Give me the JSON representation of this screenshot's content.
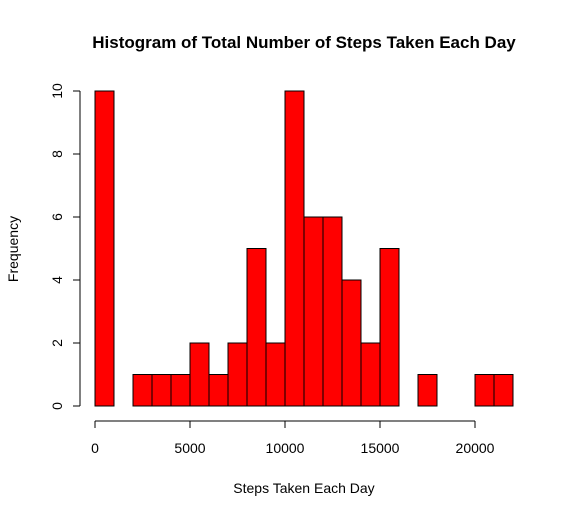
{
  "chart_data": {
    "type": "bar",
    "title": "Histogram of Total Number of Steps Taken Each Day",
    "xlabel": "Steps Taken Each Day",
    "ylabel": "Frequency",
    "bin_width": 1000,
    "bins": [
      {
        "start": 0,
        "end": 1000,
        "count": 10
      },
      {
        "start": 1000,
        "end": 2000,
        "count": 0
      },
      {
        "start": 2000,
        "end": 3000,
        "count": 1
      },
      {
        "start": 3000,
        "end": 4000,
        "count": 1
      },
      {
        "start": 4000,
        "end": 5000,
        "count": 1
      },
      {
        "start": 5000,
        "end": 6000,
        "count": 2
      },
      {
        "start": 6000,
        "end": 7000,
        "count": 1
      },
      {
        "start": 7000,
        "end": 8000,
        "count": 2
      },
      {
        "start": 8000,
        "end": 9000,
        "count": 5
      },
      {
        "start": 9000,
        "end": 10000,
        "count": 2
      },
      {
        "start": 10000,
        "end": 11000,
        "count": 10
      },
      {
        "start": 11000,
        "end": 12000,
        "count": 6
      },
      {
        "start": 12000,
        "end": 13000,
        "count": 6
      },
      {
        "start": 13000,
        "end": 14000,
        "count": 4
      },
      {
        "start": 14000,
        "end": 15000,
        "count": 2
      },
      {
        "start": 15000,
        "end": 16000,
        "count": 5
      },
      {
        "start": 16000,
        "end": 17000,
        "count": 0
      },
      {
        "start": 17000,
        "end": 18000,
        "count": 1
      },
      {
        "start": 18000,
        "end": 19000,
        "count": 0
      },
      {
        "start": 19000,
        "end": 20000,
        "count": 0
      },
      {
        "start": 20000,
        "end": 21000,
        "count": 1
      },
      {
        "start": 21000,
        "end": 22000,
        "count": 1
      }
    ],
    "x_ticks": [
      "0",
      "5000",
      "10000",
      "15000",
      "20000"
    ],
    "x_tick_values": [
      0,
      5000,
      10000,
      15000,
      20000
    ],
    "y_ticks": [
      "0",
      "2",
      "4",
      "6",
      "8",
      "10"
    ],
    "y_tick_values": [
      0,
      2,
      4,
      6,
      8,
      10
    ],
    "xlim": [
      0,
      22000
    ],
    "ylim": [
      0,
      10
    ],
    "bar_color": "#ff0000",
    "bar_border": "#000000",
    "grid": false,
    "legend": "none"
  }
}
